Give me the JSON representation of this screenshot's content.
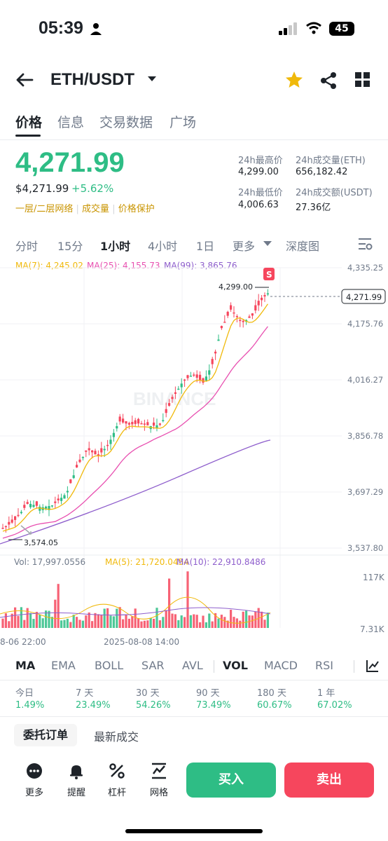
{
  "status": {
    "time": "05:39",
    "battery": "45"
  },
  "header": {
    "title": "ETH/USDT"
  },
  "tabs": [
    "价格",
    "信息",
    "交易数据",
    "广场"
  ],
  "price": {
    "last": "4,271.99",
    "usd": "$4,271.99",
    "change": "+5.62%",
    "tags": [
      "一层/二层网络",
      "成交量",
      "价格保护"
    ]
  },
  "stats": {
    "high_label": "24h最高价",
    "high": "4,299.00",
    "vol_label": "24h成交量(ETH)",
    "vol": "656,182.42",
    "low_label": "24h最低价",
    "low": "4,006.63",
    "amount_label": "24h成交额(USDT)",
    "amount": "27.36亿"
  },
  "timeframes": [
    "分时",
    "15分",
    "1小时",
    "4小时",
    "1日",
    "更多",
    "深度图"
  ],
  "ma_legend": {
    "ma7": "MA(7): 4,245.02",
    "ma25": "MA(25): 4,155.73",
    "ma99": "MA(99): 3,865.76"
  },
  "chart": {
    "yticks": [
      "4,335.25",
      "4,175.76",
      "4,016.27",
      "3,856.78",
      "3,697.29",
      "3,537.80"
    ],
    "high_marker": "4,299.00",
    "low_marker": "3,574.05",
    "current_price": "4,271.99",
    "s_badge": "S",
    "watermark": "BINANCE",
    "vol_legend": {
      "vol": "Vol: 17,997.0556",
      "ma5": "MA(5): 21,720.0454",
      "ma10": "MA(10): 22,910.8486"
    },
    "vol_ticks": [
      "117K",
      "7.31K"
    ],
    "x_labels": [
      "8-06 22:00",
      "2025-08-08 14:00"
    ]
  },
  "colors": {
    "up": "#2ebd85",
    "down": "#f6465d",
    "ma7": "#f0b90b",
    "ma25": "#e84fb0",
    "ma99": "#8e5ecc",
    "brand": "#f0b90b"
  },
  "indicators": [
    "MA",
    "EMA",
    "BOLL",
    "SAR",
    "AVL",
    "VOL",
    "MACD",
    "RSI"
  ],
  "performance": [
    {
      "label": "今日",
      "value": "1.49%"
    },
    {
      "label": "7 天",
      "value": "23.49%"
    },
    {
      "label": "30 天",
      "value": "54.26%"
    },
    {
      "label": "90 天",
      "value": "73.49%"
    },
    {
      "label": "180 天",
      "value": "60.67%"
    },
    {
      "label": "1 年",
      "value": "67.02%"
    }
  ],
  "order_tabs": [
    "委托订单",
    "最新成交"
  ],
  "bottom": {
    "more": "更多",
    "alert": "提醒",
    "leverage": "杠杆",
    "grid": "网格",
    "buy": "买入",
    "sell": "卖出"
  }
}
